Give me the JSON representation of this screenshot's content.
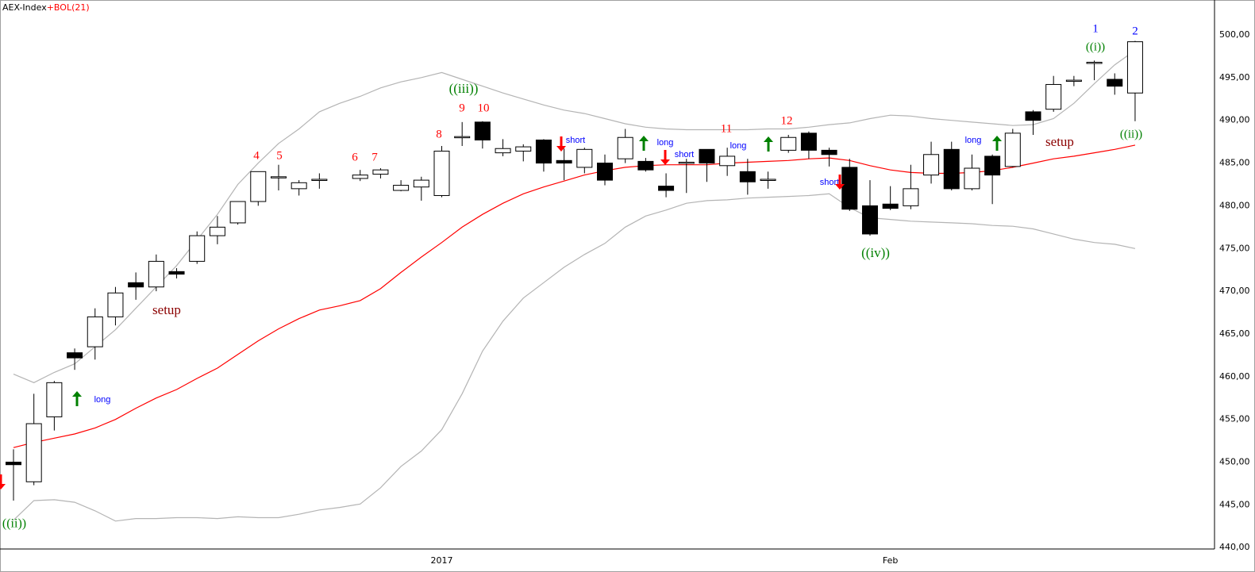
{
  "chart_data": {
    "type": "candlestick",
    "title": "AEX-Index",
    "overlay_label": "+BOL(21)",
    "overlay_color": "#ff0000",
    "categories": [
      null,
      null,
      null,
      null,
      null,
      null,
      null,
      null,
      null,
      null,
      null,
      null,
      null,
      null,
      null,
      null,
      null,
      null,
      null,
      null,
      null,
      "2017",
      null,
      null,
      null,
      null,
      null,
      null,
      null,
      null,
      null,
      null,
      null,
      null,
      null,
      null,
      null,
      null,
      null,
      null,
      null,
      null,
      null,
      "Feb",
      null,
      null,
      null,
      null,
      null,
      null,
      null,
      null,
      null,
      null,
      null,
      null
    ],
    "open": [
      450,
      447.7,
      455.3,
      462.8,
      463.5,
      467,
      471,
      470.5,
      472.3,
      473.5,
      476.5,
      478,
      480.5,
      483.3,
      482,
      483,
      null,
      483.2,
      483.7,
      481.8,
      482.2,
      481.2,
      488,
      489.8,
      486.2,
      486.4,
      487.7,
      485.3,
      484.5,
      485,
      485.5,
      485.2,
      482.3,
      485,
      486.6,
      484.7,
      484,
      483,
      486.5,
      488.5,
      486.5,
      484.5,
      480,
      480.2,
      480,
      483.6,
      486.6,
      482,
      485.8,
      484.6,
      491,
      491.3,
      494.6,
      496.7,
      494.8,
      493.2
    ],
    "high": [
      451.5,
      458,
      459.5,
      463.3,
      468,
      470.5,
      472.2,
      474.3,
      472.7,
      477,
      478.8,
      480.5,
      484,
      484.8,
      483,
      483.8,
      null,
      484.2,
      484.4,
      483,
      483.4,
      487,
      489.8,
      489.9,
      487.8,
      487.2,
      487.8,
      486.7,
      486.8,
      486,
      489,
      485.6,
      483.8,
      485.5,
      486.6,
      486.8,
      485.5,
      484,
      488.3,
      488.7,
      486.8,
      485.5,
      483,
      482.3,
      484.8,
      487.5,
      487.5,
      486,
      486,
      489,
      491.2,
      495.2,
      495.2,
      497,
      495.5,
      499.3
    ],
    "low": [
      445.5,
      447.3,
      453.7,
      460.8,
      462,
      466,
      469,
      470,
      471.5,
      473.2,
      475.5,
      477.8,
      480,
      481.8,
      481.2,
      482,
      null,
      482.9,
      483.2,
      481.7,
      480.6,
      481,
      487,
      486.7,
      485.8,
      485.2,
      484,
      483,
      483.8,
      482.4,
      485,
      484,
      481,
      481.5,
      482.8,
      483.5,
      481.3,
      482,
      486.2,
      485.5,
      484.6,
      479.4,
      476.5,
      479.5,
      479.6,
      482.6,
      481.8,
      481.8,
      480.2,
      484.5,
      488.3,
      491,
      494,
      494.7,
      493,
      489.9
    ],
    "close": [
      449.7,
      454.5,
      459.3,
      462.2,
      467,
      469.8,
      470.5,
      473.5,
      472,
      476.5,
      477.5,
      480.5,
      484,
      483.4,
      482.7,
      483.1,
      null,
      483.6,
      484.2,
      482.4,
      483,
      486.4,
      488.1,
      487.7,
      486.7,
      486.9,
      485,
      485,
      486.6,
      483,
      488,
      484.2,
      481.8,
      485.1,
      485,
      485.8,
      482.8,
      483.1,
      488,
      486.5,
      486,
      479.6,
      476.7,
      479.7,
      482,
      486,
      482,
      484.4,
      483.6,
      488.5,
      490,
      494.2,
      494.7,
      496.8,
      494,
      499.2
    ],
    "bands": {
      "upper_color": "#b4b4b4",
      "middle_color": "#ff0000",
      "lower_color": "#b4b4b4",
      "upper": [
        460.3,
        459.3,
        460.5,
        461.5,
        463.5,
        465.5,
        468,
        470.5,
        473,
        476,
        479,
        482.5,
        485,
        487.3,
        489,
        491,
        492,
        492.8,
        493.8,
        494.5,
        495,
        495.6,
        494.8,
        494,
        493.2,
        492.5,
        491.8,
        491.2,
        490.8,
        490.2,
        489.6,
        489.2,
        489,
        488.9,
        488.9,
        488.9,
        488.9,
        489,
        489,
        489.2,
        489.5,
        489.7,
        490.2,
        490.6,
        490.5,
        490.2,
        490,
        489.8,
        489.6,
        489.4,
        489.5,
        490.2,
        492,
        494.3,
        496.5,
        498.2
      ],
      "middle": [
        451.7,
        452.3,
        452.8,
        453.3,
        454,
        455,
        456.3,
        457.5,
        458.5,
        459.8,
        461,
        462.6,
        464.2,
        465.6,
        466.8,
        467.8,
        468.3,
        468.9,
        470.3,
        472.2,
        474,
        475.7,
        477.5,
        479,
        480.3,
        481.4,
        482.2,
        482.9,
        483.6,
        484.1,
        484.5,
        484.7,
        484.8,
        484.8,
        484.8,
        485,
        485.1,
        485.2,
        485.3,
        485.5,
        485.6,
        485.3,
        484.7,
        484.2,
        483.9,
        483.8,
        483.8,
        483.9,
        484.1,
        484.5,
        485,
        485.5,
        485.8,
        486.2,
        486.6,
        487.1
      ],
      "lower": [
        443.2,
        445.5,
        445.6,
        445.3,
        444.3,
        443.1,
        443.4,
        443.4,
        443.5,
        443.5,
        443.4,
        443.6,
        443.5,
        443.5,
        443.9,
        444.4,
        444.7,
        445.1,
        447,
        449.5,
        451.3,
        453.8,
        458,
        463,
        466.5,
        469.2,
        471,
        472.8,
        474.3,
        475.6,
        477.5,
        478.8,
        479.5,
        480.3,
        480.6,
        480.7,
        480.9,
        481,
        481.1,
        481.2,
        481.4,
        479.8,
        478.6,
        478.4,
        478.2,
        478.1,
        478,
        477.9,
        477.7,
        477.6,
        477.3,
        476.7,
        476.1,
        475.7,
        475.5,
        475
      ]
    },
    "ylim": [
      440,
      500
    ],
    "yticks": [
      {
        "value": 440,
        "label": "440,00"
      },
      {
        "value": 445,
        "label": "445,00"
      },
      {
        "value": 450,
        "label": "450,00"
      },
      {
        "value": 455,
        "label": "455,00"
      },
      {
        "value": 460,
        "label": "460,00"
      },
      {
        "value": 465,
        "label": "465,00"
      },
      {
        "value": 470,
        "label": "470,00"
      },
      {
        "value": 475,
        "label": "475,00"
      },
      {
        "value": 480,
        "label": "480,00"
      },
      {
        "value": 485,
        "label": "485,00"
      },
      {
        "value": 490,
        "label": "490,00"
      },
      {
        "value": 495,
        "label": "495,00"
      },
      {
        "value": 500,
        "label": "500,00"
      }
    ],
    "grid": true,
    "up_color": "#ffffff",
    "down_color": "#000000",
    "annotations": [
      {
        "text": "((ii))",
        "color": "#008000"
      },
      {
        "text": "long",
        "color": "#0000ff"
      },
      {
        "text": "setup",
        "color": "#8b0000"
      },
      {
        "text": "4",
        "color": "#ff0000"
      },
      {
        "text": "5",
        "color": "#ff0000"
      },
      {
        "text": "6",
        "color": "#ff0000"
      },
      {
        "text": "7",
        "color": "#ff0000"
      },
      {
        "text": "8",
        "color": "#ff0000"
      },
      {
        "text": "9",
        "color": "#ff0000"
      },
      {
        "text": "10",
        "color": "#ff0000"
      },
      {
        "text": "((iii))",
        "color": "#008000"
      },
      {
        "text": "short",
        "color": "#0000ff"
      },
      {
        "text": "long",
        "color": "#0000ff"
      },
      {
        "text": "short",
        "color": "#0000ff"
      },
      {
        "text": "11",
        "color": "#ff0000"
      },
      {
        "text": "long",
        "color": "#0000ff"
      },
      {
        "text": "12",
        "color": "#ff0000"
      },
      {
        "text": "short",
        "color": "#0000ff"
      },
      {
        "text": "((iv))",
        "color": "#008000"
      },
      {
        "text": "long",
        "color": "#0000ff"
      },
      {
        "text": "setup",
        "color": "#8b0000"
      },
      {
        "text": "1",
        "color": "#0000ff"
      },
      {
        "text": "((i))",
        "color": "#008000"
      },
      {
        "text": "2",
        "color": "#0000ff"
      },
      {
        "text": "((ii))",
        "color": "#008000"
      }
    ]
  }
}
